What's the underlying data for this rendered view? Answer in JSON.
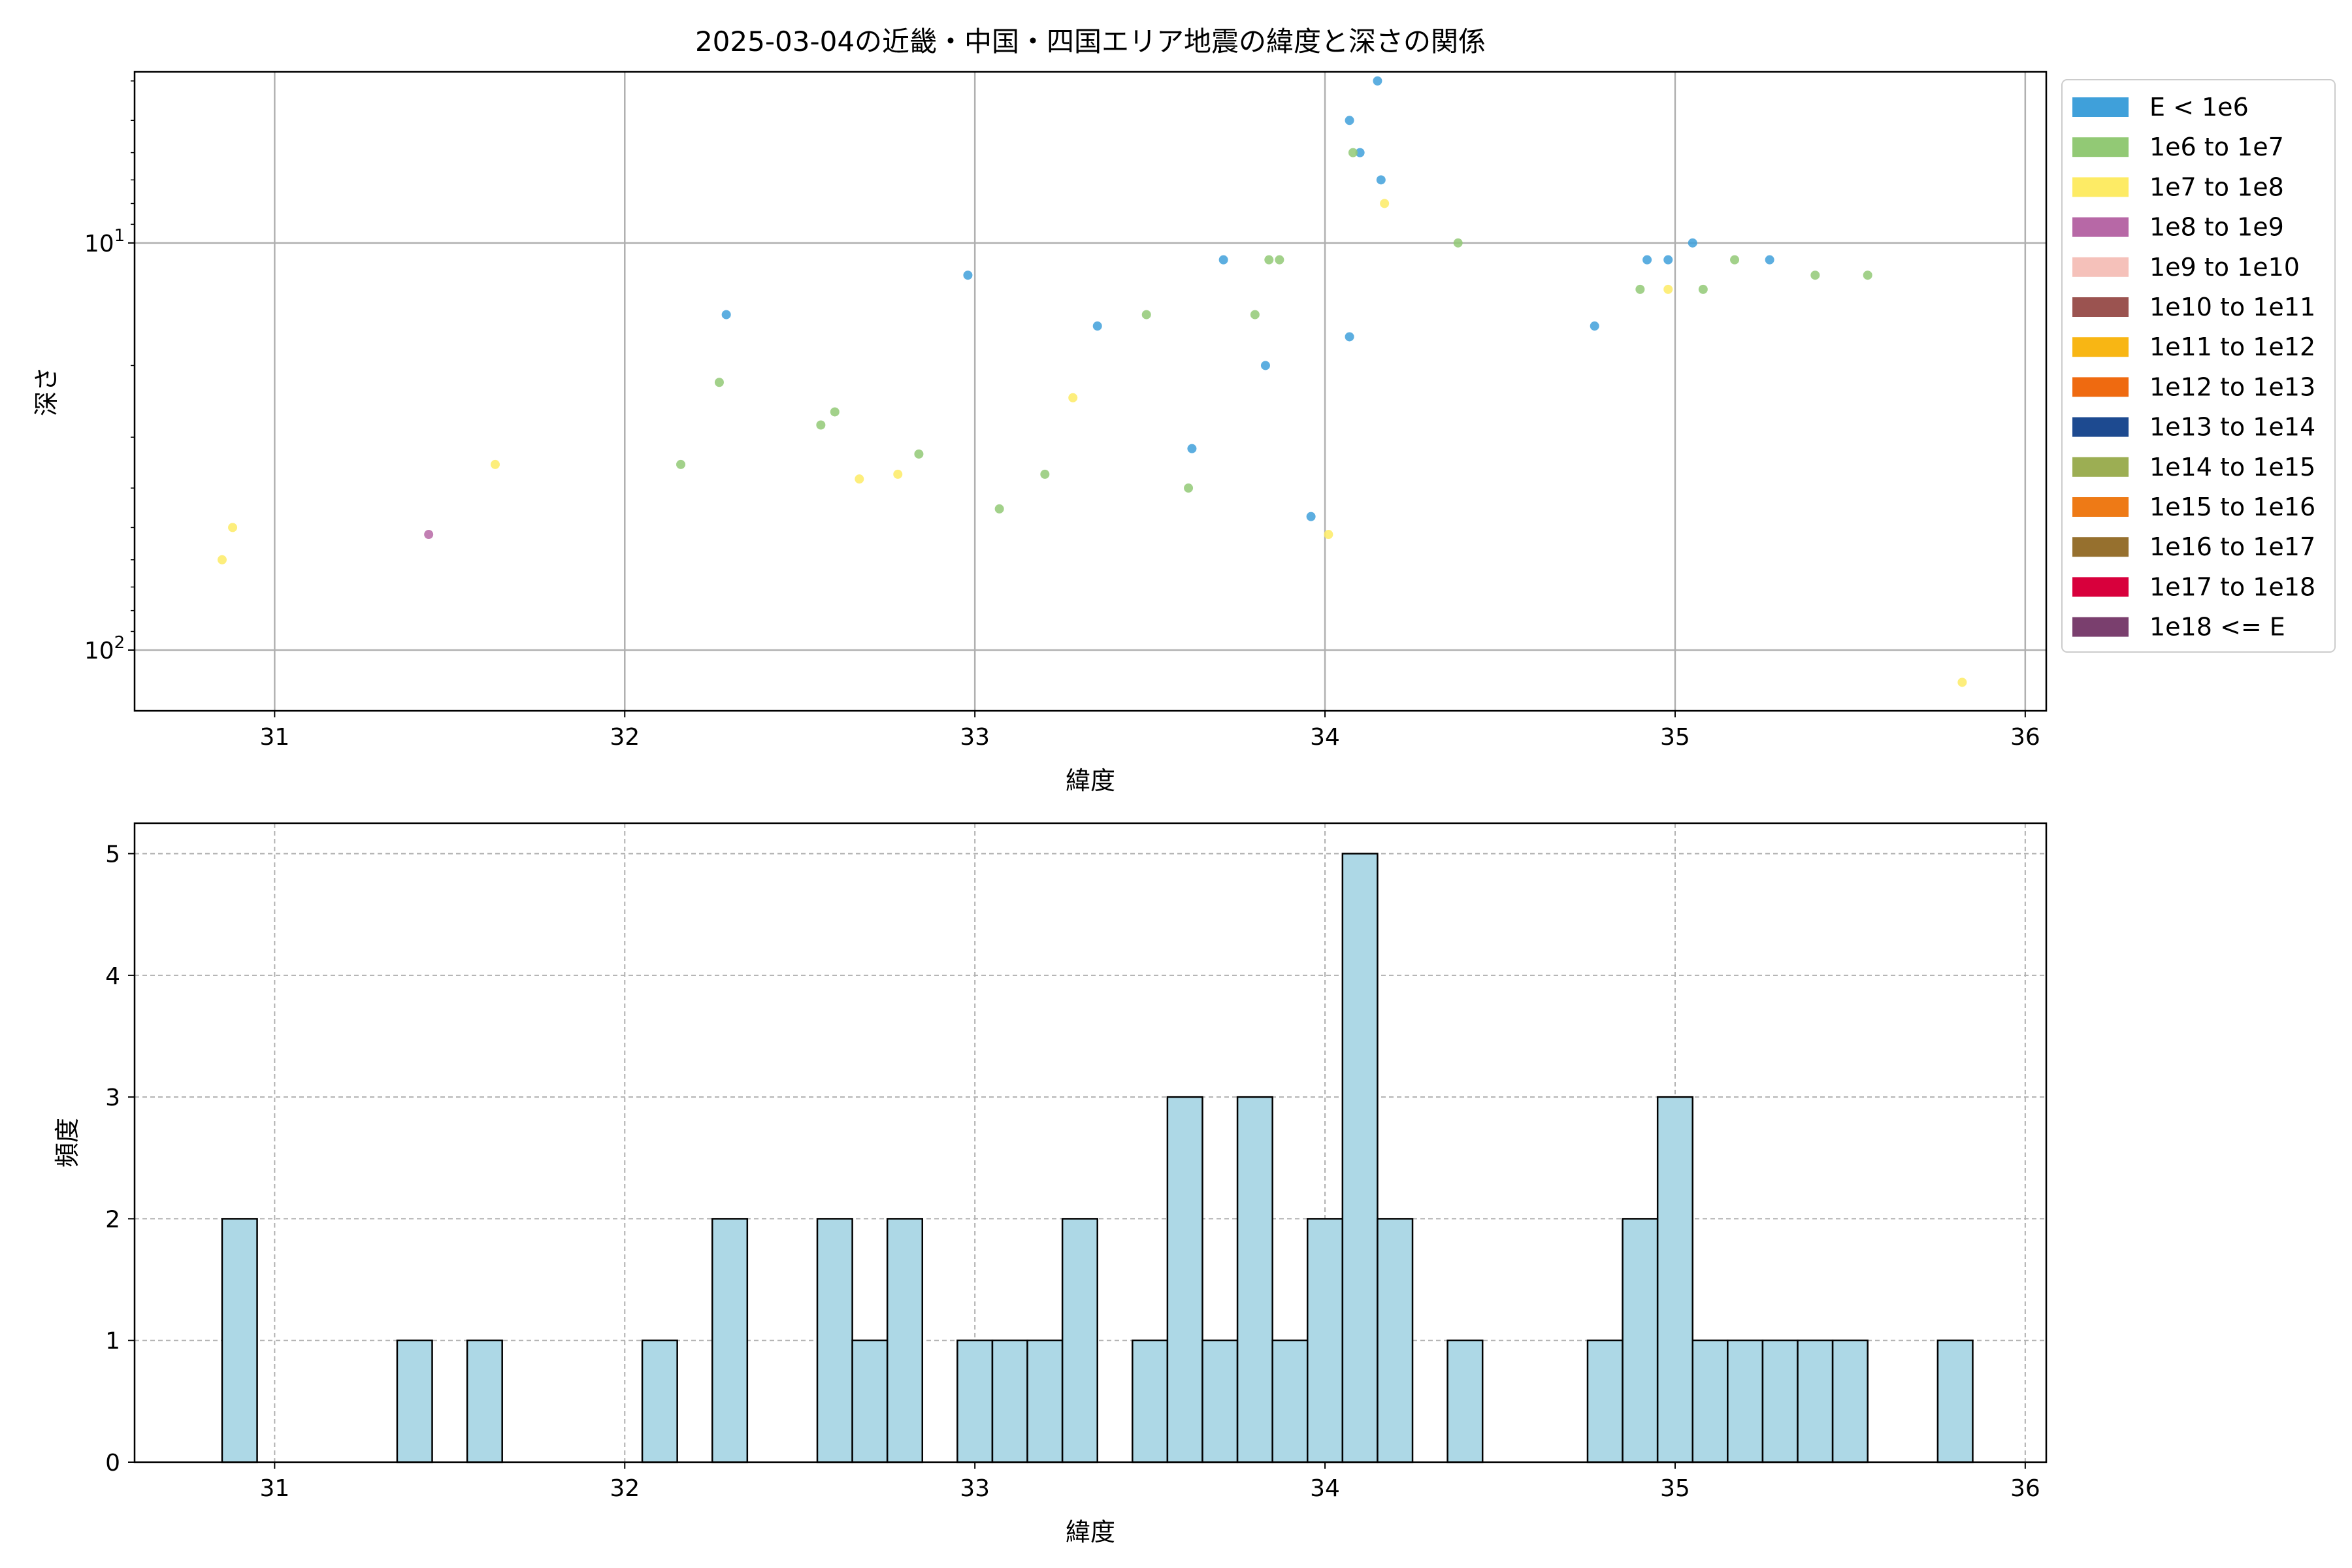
{
  "chart_data": [
    {
      "type": "scatter",
      "title": "2025-03-04の近畿・中国・四国エリア地震の緯度と深さの関係",
      "xlabel": "緯度",
      "ylabel": "深さ",
      "xlim": [
        30.6,
        36.06
      ],
      "ylim": [
        3.8,
        141
      ],
      "yscale": "log",
      "y_inverted": true,
      "grid": true,
      "x_ticks": [
        "31",
        "32",
        "33",
        "34",
        "35",
        "36"
      ],
      "y_ticks": [
        {
          "value": 10,
          "base": "10",
          "exp": "1"
        },
        {
          "value": 100,
          "base": "10",
          "exp": "2"
        }
      ],
      "legend_position": "outside-right-top",
      "legend": [
        {
          "label": "E < 1e6",
          "color": "#3FA0DA"
        },
        {
          "label": "1e6 to 1e7",
          "color": "#92C975"
        },
        {
          "label": "1e7 to 1e8",
          "color": "#FDEB65"
        },
        {
          "label": "1e8 to 1e9",
          "color": "#B768A6"
        },
        {
          "label": "1e9 to 1e10",
          "color": "#F5C1BA"
        },
        {
          "label": "1e10 to 1e11",
          "color": "#9B5350"
        },
        {
          "label": "1e11 to 1e12",
          "color": "#F8B614"
        },
        {
          "label": "1e12 to 1e13",
          "color": "#EF6A10"
        },
        {
          "label": "1e13 to 1e14",
          "color": "#1D4A90"
        },
        {
          "label": "1e14 to 1e15",
          "color": "#9CAE53"
        },
        {
          "label": "1e15 to 1e16",
          "color": "#EE7A16"
        },
        {
          "label": "1e16 to 1e17",
          "color": "#96702E"
        },
        {
          "label": "1e17 to 1e18",
          "color": "#D8003C"
        },
        {
          "label": "1e18 <= E",
          "color": "#7A3F6E"
        }
      ],
      "series": [
        {
          "class": 0,
          "points": [
            [
              34.15,
              4
            ],
            [
              34.07,
              5
            ],
            [
              34.1,
              6
            ],
            [
              34.16,
              7
            ],
            [
              33.71,
              11
            ],
            [
              32.98,
              12
            ],
            [
              35.05,
              10
            ],
            [
              34.92,
              11
            ],
            [
              34.98,
              11
            ],
            [
              35.27,
              11
            ],
            [
              32.29,
              15
            ],
            [
              33.35,
              16
            ],
            [
              34.07,
              17
            ],
            [
              34.77,
              16
            ],
            [
              33.83,
              20
            ],
            [
              33.62,
              32
            ],
            [
              33.96,
              47
            ]
          ]
        },
        {
          "class": 1,
          "points": [
            [
              34.08,
              6
            ],
            [
              33.84,
              11
            ],
            [
              33.87,
              11
            ],
            [
              34.38,
              10
            ],
            [
              35.17,
              11
            ],
            [
              35.4,
              12
            ],
            [
              35.55,
              12
            ],
            [
              34.9,
              13
            ],
            [
              35.08,
              13
            ],
            [
              33.49,
              15
            ],
            [
              33.8,
              15
            ],
            [
              32.27,
              22
            ],
            [
              32.6,
              26
            ],
            [
              32.56,
              28
            ],
            [
              32.84,
              33
            ],
            [
              32.16,
              35
            ],
            [
              33.2,
              37
            ],
            [
              33.61,
              40
            ],
            [
              33.07,
              45
            ]
          ]
        },
        {
          "class": 2,
          "points": [
            [
              34.17,
              8
            ],
            [
              34.98,
              13
            ],
            [
              33.28,
              24
            ],
            [
              31.63,
              35
            ],
            [
              32.67,
              38
            ],
            [
              32.78,
              37
            ],
            [
              30.88,
              50
            ],
            [
              34.01,
              52
            ],
            [
              30.85,
              60
            ],
            [
              35.82,
              120
            ]
          ]
        },
        {
          "class": 3,
          "points": [
            [
              31.44,
              52
            ]
          ]
        }
      ]
    },
    {
      "type": "bar",
      "xlabel": "緯度",
      "ylabel": "頻度",
      "xlim": [
        30.6,
        36.06
      ],
      "ylim": [
        0,
        5.25
      ],
      "grid": true,
      "grid_style": "dashed",
      "bar_color": "#ADD8E6",
      "bin_width": 0.1,
      "x_ticks": [
        "31",
        "32",
        "33",
        "34",
        "35",
        "36"
      ],
      "y_ticks": [
        "0",
        "1",
        "2",
        "3",
        "4",
        "5"
      ],
      "bins": [
        {
          "start": 30.85,
          "value": 2
        },
        {
          "start": 31.35,
          "value": 1
        },
        {
          "start": 31.55,
          "value": 1
        },
        {
          "start": 32.05,
          "value": 1
        },
        {
          "start": 32.25,
          "value": 2
        },
        {
          "start": 32.55,
          "value": 2
        },
        {
          "start": 32.65,
          "value": 1
        },
        {
          "start": 32.75,
          "value": 2
        },
        {
          "start": 32.95,
          "value": 1
        },
        {
          "start": 33.05,
          "value": 1
        },
        {
          "start": 33.15,
          "value": 1
        },
        {
          "start": 33.25,
          "value": 2
        },
        {
          "start": 33.45,
          "value": 1
        },
        {
          "start": 33.55,
          "value": 3
        },
        {
          "start": 33.65,
          "value": 1
        },
        {
          "start": 33.75,
          "value": 3
        },
        {
          "start": 33.85,
          "value": 1
        },
        {
          "start": 33.95,
          "value": 2
        },
        {
          "start": 34.05,
          "value": 5
        },
        {
          "start": 34.15,
          "value": 2
        },
        {
          "start": 34.35,
          "value": 1
        },
        {
          "start": 34.75,
          "value": 1
        },
        {
          "start": 34.85,
          "value": 2
        },
        {
          "start": 34.95,
          "value": 3
        },
        {
          "start": 35.05,
          "value": 1
        },
        {
          "start": 35.15,
          "value": 1
        },
        {
          "start": 35.25,
          "value": 1
        },
        {
          "start": 35.35,
          "value": 1
        },
        {
          "start": 35.45,
          "value": 1
        },
        {
          "start": 35.75,
          "value": 1
        }
      ]
    }
  ]
}
